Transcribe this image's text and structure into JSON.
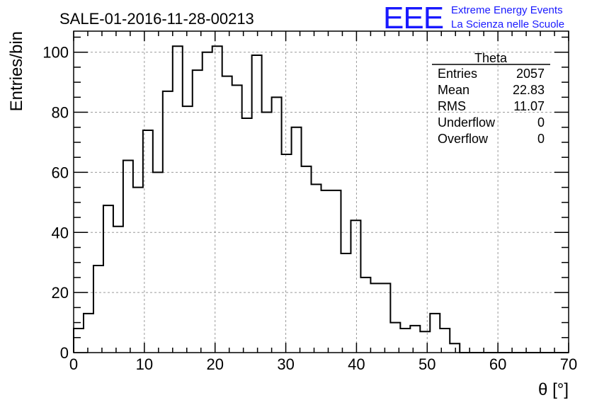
{
  "chart_data": {
    "type": "bar",
    "title": "SALE-01-2016-11-28-00213",
    "xlabel": "θ [°]",
    "ylabel": "Entries/bin",
    "xlim": [
      0,
      70
    ],
    "ylim": [
      0,
      107
    ],
    "xticks": [
      0,
      10,
      20,
      30,
      40,
      50,
      60,
      70
    ],
    "yticks": [
      0,
      20,
      40,
      60,
      80,
      100
    ],
    "grid": true,
    "bin_width": 1.4,
    "bin_start": 0,
    "values": [
      8,
      13,
      29,
      49,
      42,
      64,
      55,
      74,
      60,
      87,
      102,
      82,
      94,
      100,
      102,
      92,
      89,
      78,
      99,
      80,
      85,
      66,
      75,
      62,
      56,
      54,
      54,
      33,
      44,
      25,
      23,
      23,
      10,
      8,
      9,
      7,
      13,
      8,
      3,
      0,
      0,
      0,
      0,
      0,
      0,
      0,
      0,
      0,
      0,
      0
    ],
    "stats_box": {
      "title": "Theta",
      "rows": [
        {
          "label": "Entries",
          "value": "2057"
        },
        {
          "label": "Mean",
          "value": "22.83"
        },
        {
          "label": "RMS",
          "value": "11.07"
        },
        {
          "label": "Underflow",
          "value": "0"
        },
        {
          "label": "Overflow",
          "value": "0"
        }
      ]
    },
    "legend_placement": "top-right"
  },
  "logo": {
    "text": "EEE",
    "line1": "Extreme Energy Events",
    "line2": "La Scienza nelle Scuole",
    "color": "#1a1aff"
  },
  "colors": {
    "histogram": "#000000",
    "grid": "#9a9a9a"
  }
}
